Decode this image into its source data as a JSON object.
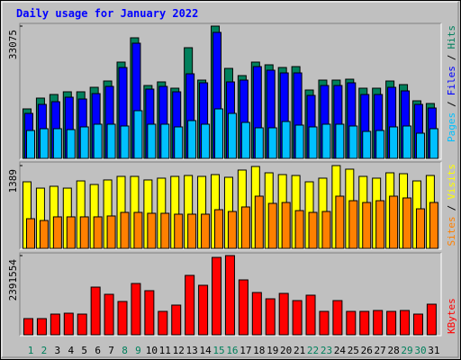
{
  "chart_data": [
    {
      "type": "bar",
      "title": "Daily usage for January 2022",
      "ylim": [
        0,
        33075
      ],
      "yticks": [
        33075
      ],
      "series": [
        {
          "name": "Hits",
          "color": "#00805c",
          "values": [
            12375,
            15075,
            15975,
            16650,
            16650,
            17775,
            19350,
            24075,
            30150,
            18225,
            19125,
            17550,
            27675,
            19575,
            33075,
            22500,
            20700,
            24075,
            23400,
            22725,
            22950,
            17100,
            19575,
            19575,
            19800,
            17550,
            17550,
            19350,
            18450,
            14400,
            13725
          ]
        },
        {
          "name": "Files",
          "color": "#0000ff",
          "values": [
            11250,
            13500,
            14175,
            15300,
            14850,
            16200,
            18000,
            22725,
            28800,
            17325,
            18000,
            16650,
            21150,
            18900,
            31500,
            19125,
            19575,
            22950,
            22050,
            21375,
            21375,
            15750,
            18225,
            18225,
            18900,
            15975,
            15975,
            17775,
            16875,
            13500,
            12600
          ]
        },
        {
          "name": "Pages",
          "color": "#00c0ff",
          "values": [
            6975,
            7425,
            7425,
            7200,
            7875,
            8550,
            8550,
            8100,
            11925,
            8550,
            8550,
            7875,
            9450,
            8550,
            12375,
            11250,
            9000,
            7650,
            7650,
            9225,
            8325,
            7875,
            8550,
            8550,
            8100,
            6750,
            6975,
            7875,
            8100,
            6300,
            7425
          ]
        }
      ]
    },
    {
      "type": "bar",
      "ylim": [
        0,
        1389
      ],
      "yticks": [
        1389
      ],
      "series": [
        {
          "name": "Visits",
          "color": "#ffff00",
          "values": [
            1117,
            1011,
            1042,
            1011,
            1132,
            1072,
            1148,
            1208,
            1208,
            1148,
            1178,
            1208,
            1223,
            1208,
            1238,
            1193,
            1314,
            1374,
            1268,
            1238,
            1223,
            1117,
            1178,
            1389,
            1329,
            1208,
            1178,
            1268,
            1253,
            1132,
            1223
          ]
        },
        {
          "name": "Sites",
          "color": "#ff8000",
          "values": [
            498,
            468,
            529,
            529,
            529,
            529,
            544,
            604,
            604,
            589,
            589,
            574,
            574,
            574,
            649,
            619,
            695,
            876,
            755,
            770,
            634,
            604,
            619,
            876,
            800,
            770,
            800,
            876,
            846,
            664,
            770
          ]
        }
      ]
    },
    {
      "type": "bar",
      "ylim": [
        0,
        2391554
      ],
      "yticks": [
        2391554
      ],
      "categories": [
        "1",
        "2",
        "3",
        "4",
        "5",
        "6",
        "7",
        "8",
        "9",
        "10",
        "11",
        "12",
        "13",
        "14",
        "15",
        "16",
        "17",
        "18",
        "19",
        "20",
        "21",
        "22",
        "23",
        "24",
        "25",
        "26",
        "27",
        "28",
        "29",
        "30",
        "31"
      ],
      "category_colors": [
        "#00805c",
        "#00805c",
        "#000000",
        "#000000",
        "#000000",
        "#000000",
        "#000000",
        "#00805c",
        "#00805c",
        "#000000",
        "#000000",
        "#000000",
        "#000000",
        "#000000",
        "#00805c",
        "#00805c",
        "#000000",
        "#000000",
        "#000000",
        "#000000",
        "#000000",
        "#00805c",
        "#00805c",
        "#000000",
        "#000000",
        "#000000",
        "#000000",
        "#000000",
        "#00805c",
        "#00805c",
        "#000000"
      ],
      "series": [
        {
          "name": "KBytes",
          "color": "#ff0000",
          "values": [
            489000,
            489000,
            625000,
            652000,
            625000,
            1440000,
            1223000,
            1006000,
            1549000,
            1332000,
            707000,
            897000,
            1794000,
            1495000,
            2337000,
            2391554,
            1658000,
            1277000,
            1087000,
            1250000,
            1033000,
            1196000,
            707000,
            1033000,
            707000,
            707000,
            734000,
            707000,
            734000,
            625000,
            924000
          ]
        }
      ]
    }
  ],
  "legend_separator": "/"
}
